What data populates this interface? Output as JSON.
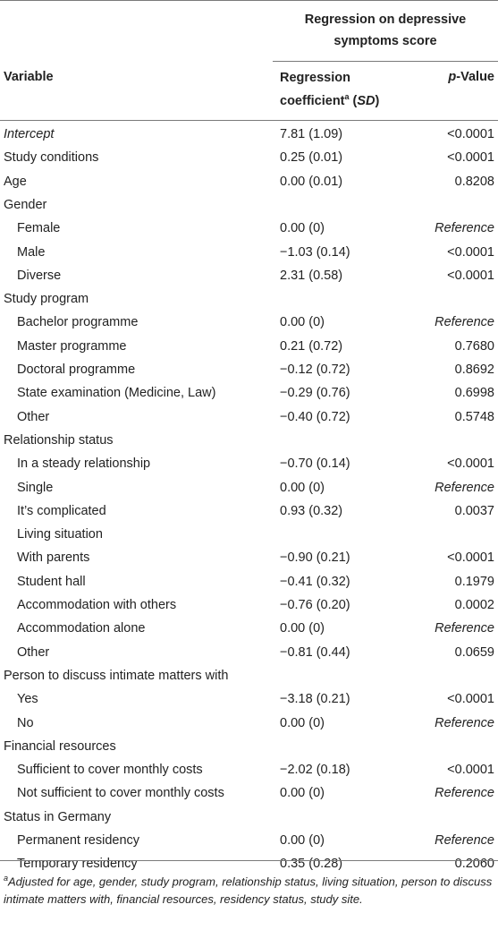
{
  "header": {
    "group_line1": "Regression on depressive",
    "group_line2": "symptoms score",
    "variable": "Variable",
    "coef_line1": "Regression",
    "coef_line2_pre": "coefficient",
    "coef_sup": "a",
    "coef_line2_post": " (",
    "coef_sd": "SD",
    "coef_close": ")",
    "pval_italic": "p",
    "pval_rest": "-Value"
  },
  "rows": [
    {
      "variable": "Intercept",
      "coef": "7.81 (1.09)",
      "p": "<0.0001"
    },
    {
      "variable": "Study conditions",
      "coef": "0.25 (0.01)",
      "p": "<0.0001"
    },
    {
      "variable": "Age",
      "coef": "0.00 (0.01)",
      "p": "0.8208"
    },
    {
      "variable": "Gender",
      "coef": "",
      "p": ""
    },
    {
      "variable": "Female",
      "coef": "0.00 (0)",
      "p": "Reference"
    },
    {
      "variable": "Male",
      "coef": "−1.03 (0.14)",
      "p": "<0.0001"
    },
    {
      "variable": "Diverse",
      "coef": "2.31 (0.58)",
      "p": "<0.0001"
    },
    {
      "variable": "Study program",
      "coef": "",
      "p": ""
    },
    {
      "variable": "Bachelor programme",
      "coef": "0.00 (0)",
      "p": "Reference"
    },
    {
      "variable": "Master programme",
      "coef": "0.21 (0.72)",
      "p": "0.7680"
    },
    {
      "variable": "Doctoral programme",
      "coef": "−0.12 (0.72)",
      "p": "0.8692"
    },
    {
      "variable": "State examination (Medicine, Law)",
      "coef": "−0.29 (0.76)",
      "p": "0.6998"
    },
    {
      "variable": "Other",
      "coef": "−0.40 (0.72)",
      "p": "0.5748"
    },
    {
      "variable": "Relationship status",
      "coef": "",
      "p": ""
    },
    {
      "variable": "In a steady relationship",
      "coef": "−0.70 (0.14)",
      "p": "<0.0001"
    },
    {
      "variable": "Single",
      "coef": "0.00 (0)",
      "p": "Reference"
    },
    {
      "variable": "It’s complicated",
      "coef": "0.93 (0.32)",
      "p": "0.0037"
    },
    {
      "variable": "Living situation",
      "coef": "",
      "p": ""
    },
    {
      "variable": "With parents",
      "coef": "−0.90 (0.21)",
      "p": "<0.0001"
    },
    {
      "variable": "Student hall",
      "coef": "−0.41 (0.32)",
      "p": "0.1979"
    },
    {
      "variable": "Accommodation with others",
      "coef": "−0.76 (0.20)",
      "p": "0.0002"
    },
    {
      "variable": "Accommodation alone",
      "coef": "0.00 (0)",
      "p": "Reference"
    },
    {
      "variable": "Other",
      "coef": "−0.81 (0.44)",
      "p": "0.0659"
    },
    {
      "variable": "Person to discuss intimate matters with",
      "coef": "",
      "p": ""
    },
    {
      "variable": "Yes",
      "coef": "−3.18 (0.21)",
      "p": "<0.0001"
    },
    {
      "variable": "No",
      "coef": "0.00 (0)",
      "p": "Reference"
    },
    {
      "variable": "Financial resources",
      "coef": "",
      "p": ""
    },
    {
      "variable": "Sufficient to cover monthly costs",
      "coef": "−2.02 (0.18)",
      "p": "<0.0001"
    },
    {
      "variable": "Not sufficient to cover monthly costs",
      "coef": "0.00 (0)",
      "p": "Reference"
    },
    {
      "variable": "Status in Germany",
      "coef": "",
      "p": ""
    },
    {
      "variable": "Permanent residency",
      "coef": "0.00 (0)",
      "p": "Reference"
    },
    {
      "variable": "Temporary residency",
      "coef": "0.35 (0.28)",
      "p": "0.2060"
    }
  ],
  "footnote": {
    "sup": "a",
    "text": "Adjusted for age, gender, study program, relationship status, living situation, person to discuss intimate matters with, financial resources, residency status, study site."
  }
}
